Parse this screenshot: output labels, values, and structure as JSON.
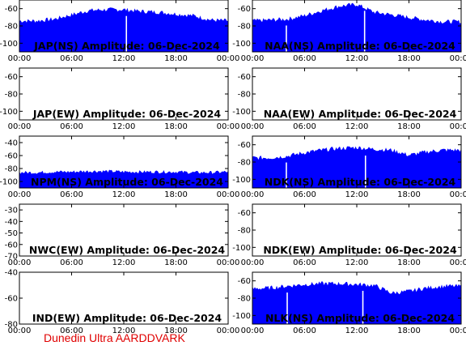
{
  "footer": "Dunedin Ultra AARDDVARK",
  "colors": {
    "signal": "#0000ff",
    "axis": "#000000",
    "footer": "#e00000"
  },
  "chart_data": [
    {
      "type": "area",
      "title": "JAP(NS) Amplitude: 06-Dec-2024",
      "ylim": [
        -110,
        -50
      ],
      "yticks": [
        -60,
        -80,
        -100
      ],
      "xticks": [
        "00:00",
        "06:00",
        "12:00",
        "18:00",
        "00:00"
      ],
      "x_hours": [
        0,
        2,
        4,
        6,
        8,
        10,
        12,
        14,
        16,
        18,
        20,
        22,
        24
      ],
      "y": [
        -74,
        -74,
        -72,
        -67,
        -62,
        -61,
        -61,
        -63,
        -64,
        -66,
        -68,
        -73,
        -74
      ],
      "gaps": [
        12.3
      ]
    },
    {
      "type": "area",
      "title": "NAA(NS) Amplitude: 06-Dec-2024",
      "ylim": [
        -110,
        -50
      ],
      "yticks": [
        -60,
        -80,
        -100
      ],
      "xticks": [
        "00:00",
        "06:00",
        "12:00",
        "18:00",
        "00:00"
      ],
      "x_hours": [
        0,
        2,
        4,
        6,
        8,
        10,
        12,
        14,
        16,
        18,
        20,
        22,
        24
      ],
      "y": [
        -74,
        -73,
        -72,
        -68,
        -62,
        -57,
        -55,
        -64,
        -67,
        -70,
        -73,
        -75,
        -75
      ],
      "gaps": [
        3.9,
        12.9
      ]
    },
    {
      "type": "area",
      "title": "JAP(EW) Amplitude: 06-Dec-2024",
      "ylim": [
        -110,
        -50
      ],
      "yticks": [
        -60,
        -80,
        -100
      ],
      "xticks": [
        "00:00",
        "06:00",
        "12:00",
        "18:00",
        "00:00"
      ],
      "x_hours": [],
      "y": [],
      "gaps": []
    },
    {
      "type": "area",
      "title": "NAA(EW) Amplitude: 06-Dec-2024",
      "ylim": [
        -110,
        -50
      ],
      "yticks": [
        -60,
        -80,
        -100
      ],
      "xticks": [
        "00:00",
        "06:00",
        "12:00",
        "18:00",
        "00:00"
      ],
      "x_hours": [],
      "y": [],
      "gaps": []
    },
    {
      "type": "area",
      "title": "NPM(NS) Amplitude: 06-Dec-2024",
      "ylim": [
        -110,
        -30
      ],
      "yticks": [
        -40,
        -60,
        -80,
        -100
      ],
      "xticks": [
        "00:00",
        "06:00",
        "12:00",
        "18:00",
        "00:00"
      ],
      "x_hours": [
        0,
        2,
        4,
        6,
        8,
        10,
        12,
        14,
        16,
        18,
        20,
        22,
        24
      ],
      "y": [
        -86,
        -86,
        -85,
        -85,
        -84,
        -84,
        -85,
        -85,
        -85,
        -85,
        -86,
        -86,
        -85
      ],
      "gaps": []
    },
    {
      "type": "area",
      "title": "NDK(NS) Amplitude: 06-Dec-2024",
      "ylim": [
        -110,
        -50
      ],
      "yticks": [
        -60,
        -80,
        -100
      ],
      "xticks": [
        "00:00",
        "06:00",
        "12:00",
        "18:00",
        "00:00"
      ],
      "x_hours": [
        0,
        2,
        4,
        6,
        8,
        10,
        12,
        14,
        16,
        18,
        20,
        22,
        24
      ],
      "y": [
        -75,
        -75,
        -73,
        -69,
        -66,
        -64,
        -63,
        -65,
        -66,
        -72,
        -68,
        -66,
        -66
      ],
      "gaps": [
        3.9,
        13.0
      ]
    },
    {
      "type": "area",
      "title": "NWC(EW) Amplitude: 06-Dec-2024",
      "ylim": [
        -70,
        -25
      ],
      "yticks": [
        -30,
        -40,
        -50,
        -60,
        -70
      ],
      "xticks": [
        "00:00",
        "06:00",
        "12:00",
        "18:00",
        "00:00"
      ],
      "x_hours": [],
      "y": [],
      "gaps": []
    },
    {
      "type": "area",
      "title": "NDK(EW) Amplitude: 06-Dec-2024",
      "ylim": [
        -110,
        -50
      ],
      "yticks": [
        -60,
        -80,
        -100
      ],
      "xticks": [
        "00:00",
        "06:00",
        "12:00",
        "18:00",
        "00:00"
      ],
      "x_hours": [],
      "y": [],
      "gaps": []
    },
    {
      "type": "area",
      "title": "IND(EW) Amplitude: 06-Dec-2024",
      "ylim": [
        -80,
        -40
      ],
      "yticks": [
        -40,
        -60,
        -80
      ],
      "xticks": [
        "00:00",
        "06:00",
        "12:00",
        "18:00",
        "00:00"
      ],
      "x_hours": [],
      "y": [],
      "gaps": []
    },
    {
      "type": "area",
      "title": "NLK(NS) Amplitude: 06-Dec-2024",
      "ylim": [
        -110,
        -50
      ],
      "yticks": [
        -60,
        -80,
        -100
      ],
      "xticks": [
        "00:00",
        "06:00",
        "12:00",
        "18:00",
        "00:00"
      ],
      "x_hours": [
        0,
        2,
        4,
        6,
        8,
        10,
        12,
        14,
        16,
        18,
        20,
        22,
        24
      ],
      "y": [
        -69,
        -68,
        -66,
        -64,
        -63,
        -63,
        -64,
        -65,
        -74,
        -72,
        -68,
        -66,
        -66
      ],
      "gaps": [
        4.0,
        12.7
      ]
    }
  ]
}
